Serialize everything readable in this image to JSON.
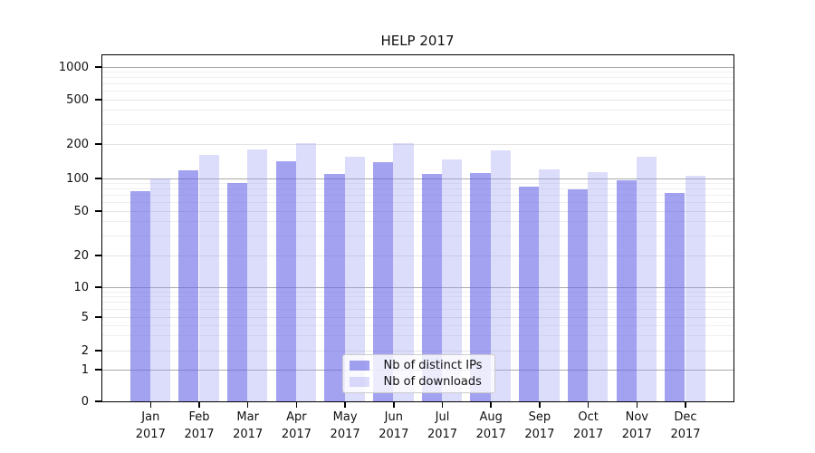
{
  "title": "HELP 2017",
  "chart_data": {
    "type": "bar",
    "title": "HELP 2017",
    "xlabel": "",
    "ylabel": "",
    "yscale": "symlog",
    "ylim": [
      0,
      1000
    ],
    "yticks": [
      0,
      1,
      2,
      5,
      10,
      20,
      50,
      100,
      200,
      500,
      1000
    ],
    "minor_yticks": [
      3,
      4,
      6,
      7,
      8,
      9,
      30,
      40,
      60,
      70,
      80,
      90,
      300,
      400,
      600,
      700,
      800,
      900
    ],
    "grid": "on",
    "legend_position": "lower center",
    "categories": [
      "Jan 2017",
      "Feb 2017",
      "Mar 2017",
      "Apr 2017",
      "May 2017",
      "Jun 2017",
      "Jul 2017",
      "Aug 2017",
      "Sep 2017",
      "Oct 2017",
      "Nov 2017",
      "Dec 2017"
    ],
    "series": [
      {
        "name": "Nb of distinct IPs",
        "color": "#6464e6",
        "alpha": 0.6,
        "values": [
          76,
          117,
          91,
          142,
          109,
          140,
          110,
          112,
          84,
          79,
          97,
          73
        ]
      },
      {
        "name": "Nb of downloads",
        "color": "#9b9bf4",
        "alpha": 0.35,
        "values": [
          100,
          160,
          180,
          205,
          155,
          205,
          146,
          175,
          120,
          114,
          155,
          106
        ]
      }
    ]
  },
  "colors": {
    "major_grid": "#aaaaaa",
    "labeled_grid": "#e4e4e4",
    "minor_grid": "#efefef",
    "spine": "#000000",
    "text": "#111111",
    "legend_border": "#cccccc"
  }
}
